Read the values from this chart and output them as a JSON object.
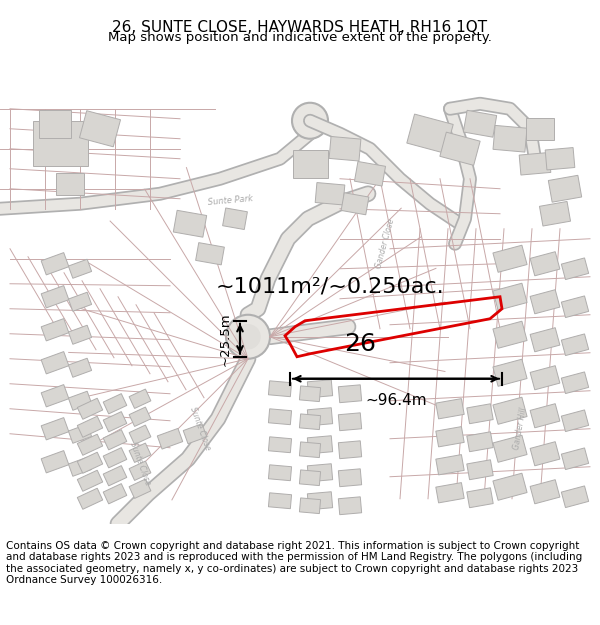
{
  "title": "26, SUNTE CLOSE, HAYWARDS HEATH, RH16 1QT",
  "subtitle": "Map shows position and indicative extent of the property.",
  "footer": "Contains OS data © Crown copyright and database right 2021. This information is subject to Crown copyright and database rights 2023 and is reproduced with the permission of HM Land Registry. The polygons (including the associated geometry, namely x, y co-ordinates) are subject to Crown copyright and database rights 2023 Ordnance Survey 100026316.",
  "area_text": "~1011m²/~0.250ac.",
  "width_text": "~96.4m",
  "height_text": "~25.5m",
  "plot_number": "26",
  "map_bg": "#f7f5f2",
  "road_outline_color": "#c8a8a8",
  "road_line_color": "#d4b8b8",
  "plot_line_color": "#f0b8b8",
  "building_color": "#d8d6d2",
  "building_edge": "#b0aead",
  "plot_edge_color": "#dd0000",
  "gray_road_color": "#b0b0b0",
  "gray_road_fill": "#e8e6e2",
  "title_fontsize": 11,
  "subtitle_fontsize": 9.5,
  "footer_fontsize": 7.5,
  "figsize": [
    6.0,
    6.25
  ],
  "dpi": 100
}
